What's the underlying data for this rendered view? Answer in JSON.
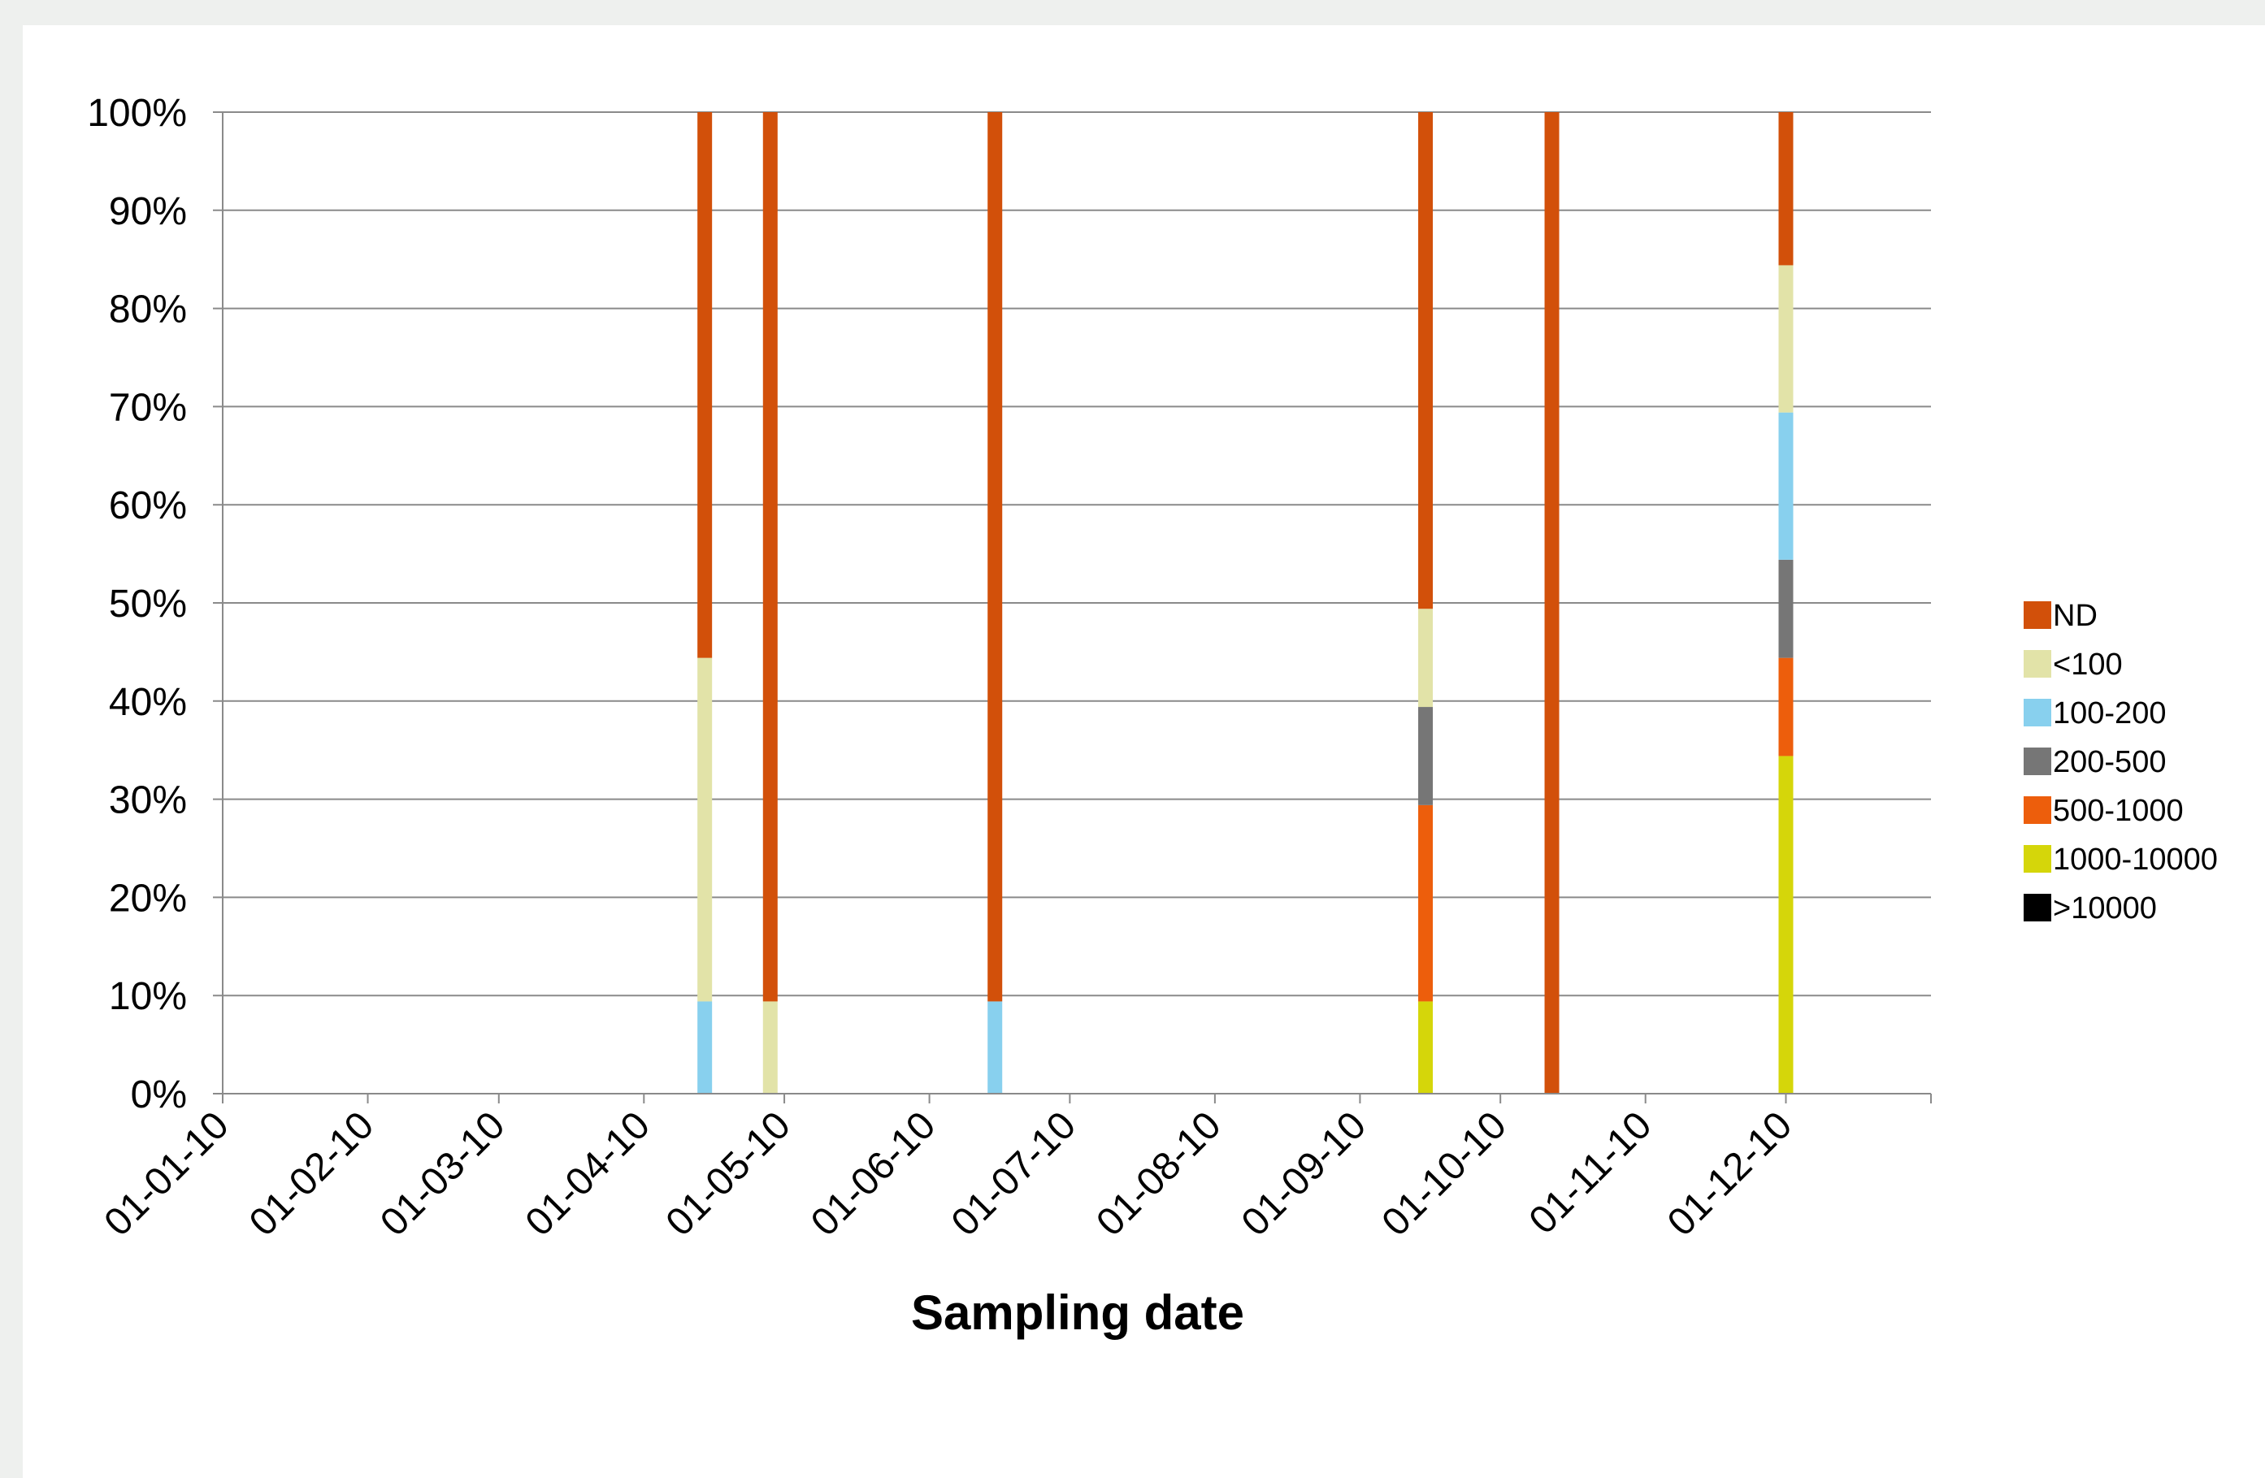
{
  "chart_data": {
    "type": "bar",
    "stacked": true,
    "percent": true,
    "title": "",
    "xlabel": "Sampling date",
    "ylabel": "",
    "x_axis": {
      "type": "date",
      "range": [
        "2010-01-01",
        "2011-01-01"
      ],
      "tick_labels": [
        "01-01-10",
        "01-02-10",
        "01-03-10",
        "01-04-10",
        "01-05-10",
        "01-06-10",
        "01-07-10",
        "01-08-10",
        "01-09-10",
        "01-10-10",
        "01-11-10",
        "01-12-10"
      ],
      "tick_dates": [
        "2010-01-01",
        "2010-02-01",
        "2010-03-01",
        "2010-04-01",
        "2010-05-01",
        "2010-06-01",
        "2010-07-01",
        "2010-08-01",
        "2010-09-01",
        "2010-10-01",
        "2010-11-01",
        "2010-12-01",
        "2011-01-01"
      ]
    },
    "y_axis": {
      "ylim": [
        0,
        100
      ],
      "tick_labels": [
        "0%",
        "10%",
        "20%",
        "30%",
        "40%",
        "50%",
        "60%",
        "70%",
        "80%",
        "90%",
        "100%"
      ]
    },
    "grid": true,
    "legend_position": "right",
    "series": [
      {
        "name": "ND",
        "color": "#d2500a"
      },
      {
        "name": "<100",
        "color": "#e2e3a8"
      },
      {
        "name": "100-200",
        "color": "#88d0ee"
      },
      {
        "name": "200-500",
        "color": "#767676"
      },
      {
        "name": "500-1000",
        "color": "#ed5e0c"
      },
      {
        "name": "1000-10000",
        "color": "#d5d60a"
      },
      {
        "name": ">10000",
        "color": "#000000"
      }
    ],
    "samples": [
      {
        "date": "2010-04-14",
        "values": {
          "ND": 55.6,
          "<100": 35.0,
          "100-200": 9.4,
          "200-500": 0,
          "500-1000": 0,
          "1000-10000": 0,
          ">10000": 0
        }
      },
      {
        "date": "2010-04-28",
        "values": {
          "ND": 90.6,
          "<100": 9.4,
          "100-200": 0,
          "200-500": 0,
          "500-1000": 0,
          "1000-10000": 0,
          ">10000": 0
        }
      },
      {
        "date": "2010-06-15",
        "values": {
          "ND": 90.6,
          "<100": 0,
          "100-200": 9.4,
          "200-500": 0,
          "500-1000": 0,
          "1000-10000": 0,
          ">10000": 0
        }
      },
      {
        "date": "2010-09-15",
        "values": {
          "ND": 50.6,
          "<100": 10.0,
          "100-200": 0,
          "200-500": 10.0,
          "500-1000": 20.0,
          "1000-10000": 9.4,
          ">10000": 0
        }
      },
      {
        "date": "2010-10-12",
        "values": {
          "ND": 100,
          "<100": 0,
          "100-200": 0,
          "200-500": 0,
          "500-1000": 0,
          "1000-10000": 0,
          ">10000": 0
        }
      },
      {
        "date": "2010-12-01",
        "values": {
          "ND": 15.6,
          "<100": 15.0,
          "100-200": 15.0,
          "200-500": 10.0,
          "500-1000": 10.0,
          "1000-10000": 34.4,
          ">10000": 0
        }
      }
    ]
  }
}
